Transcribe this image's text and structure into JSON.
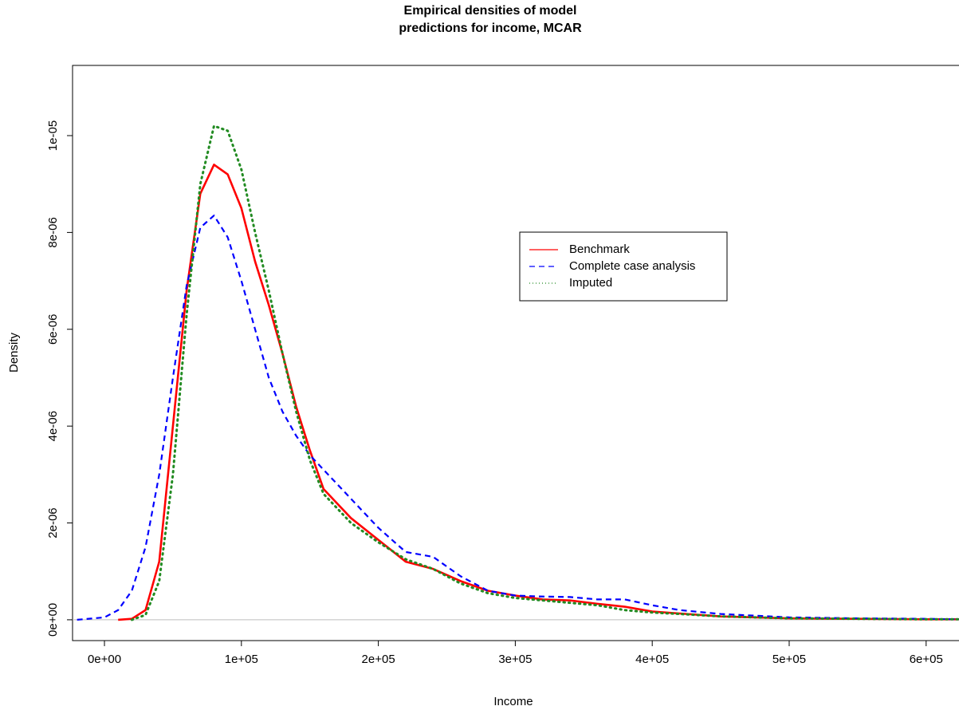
{
  "chart_data": {
    "type": "line",
    "title": [
      "Empirical densities of model",
      "predictions for income, MCAR"
    ],
    "xlabel": "Income",
    "ylabel": "Density",
    "x": [
      -20000,
      0,
      10000,
      20000,
      30000,
      40000,
      50000,
      60000,
      70000,
      80000,
      90000,
      100000,
      110000,
      120000,
      130000,
      140000,
      150000,
      160000,
      180000,
      200000,
      220000,
      240000,
      260000,
      280000,
      300000,
      320000,
      340000,
      360000,
      380000,
      400000,
      420000,
      450000,
      500000,
      550000,
      600000,
      624000
    ],
    "series": [
      {
        "name": "Benchmark",
        "color": "#ff0000",
        "dash": "solid",
        "width": 2.6,
        "values": [
          null,
          null,
          0,
          2e-08,
          2e-07,
          1.2e-06,
          4e-06,
          6.8e-06,
          8.8e-06,
          9.4e-06,
          9.2e-06,
          8.5e-06,
          7.4e-06,
          6.5e-06,
          5.5e-06,
          4.4e-06,
          3.5e-06,
          2.7e-06,
          2.1e-06,
          1.65e-06,
          1.2e-06,
          1.05e-06,
          8e-07,
          6e-07,
          5e-07,
          4.2e-07,
          4e-07,
          3.3e-07,
          2.7e-07,
          1.7e-07,
          1.3e-07,
          7e-08,
          3e-08,
          2e-08,
          1e-08,
          1e-08
        ]
      },
      {
        "name": "Complete case analysis",
        "color": "#0000ff",
        "dash": "dashed",
        "width": 2.2,
        "values": [
          0,
          5e-08,
          2e-07,
          6e-07,
          1.5e-06,
          3e-06,
          5e-06,
          6.9e-06,
          8.1e-06,
          8.35e-06,
          7.9e-06,
          7e-06,
          6e-06,
          5e-06,
          4.3e-06,
          3.8e-06,
          3.4e-06,
          3.1e-06,
          2.5e-06,
          1.9e-06,
          1.4e-06,
          1.3e-06,
          9e-07,
          6e-07,
          5e-07,
          4.8e-07,
          4.7e-07,
          4.2e-07,
          4.2e-07,
          3e-07,
          2e-07,
          1.2e-07,
          5e-08,
          3e-08,
          2e-08,
          1e-08
        ]
      },
      {
        "name": "Imputed",
        "color": "#228b22",
        "dash": "dotted",
        "width": 3,
        "values": [
          null,
          null,
          null,
          0,
          1e-07,
          8e-07,
          3e-06,
          6.3e-06,
          9e-06,
          1.02e-05,
          1.01e-05,
          9.3e-06,
          8e-06,
          6.8e-06,
          5.5e-06,
          4.3e-06,
          3.3e-06,
          2.6e-06,
          2e-06,
          1.6e-06,
          1.25e-06,
          1.05e-06,
          7.5e-07,
          5.5e-07,
          4.5e-07,
          4e-07,
          3.5e-07,
          3e-07,
          2e-07,
          1.5e-07,
          1.2e-07,
          7e-08,
          3e-08,
          2e-08,
          1e-08,
          1e-08
        ]
      }
    ],
    "xlim": [
      -23300,
      624000
    ],
    "ylim": [
      -4.3e-07,
      1.145e-05
    ],
    "xticks": [
      {
        "value": 0,
        "label": "0e+00"
      },
      {
        "value": 100000,
        "label": "1e+05"
      },
      {
        "value": 200000,
        "label": "2e+05"
      },
      {
        "value": 300000,
        "label": "3e+05"
      },
      {
        "value": 400000,
        "label": "4e+05"
      },
      {
        "value": 500000,
        "label": "5e+05"
      },
      {
        "value": 600000,
        "label": "6e+05"
      }
    ],
    "yticks": [
      {
        "value": 0,
        "label": "0e+00"
      },
      {
        "value": 2e-06,
        "label": "2e-06"
      },
      {
        "value": 4e-06,
        "label": "4e-06"
      },
      {
        "value": 6e-06,
        "label": "6e-06"
      },
      {
        "value": 8e-06,
        "label": "8e-06"
      },
      {
        "value": 1e-05,
        "label": "1e-05"
      }
    ],
    "legend": "right",
    "grid": false
  }
}
